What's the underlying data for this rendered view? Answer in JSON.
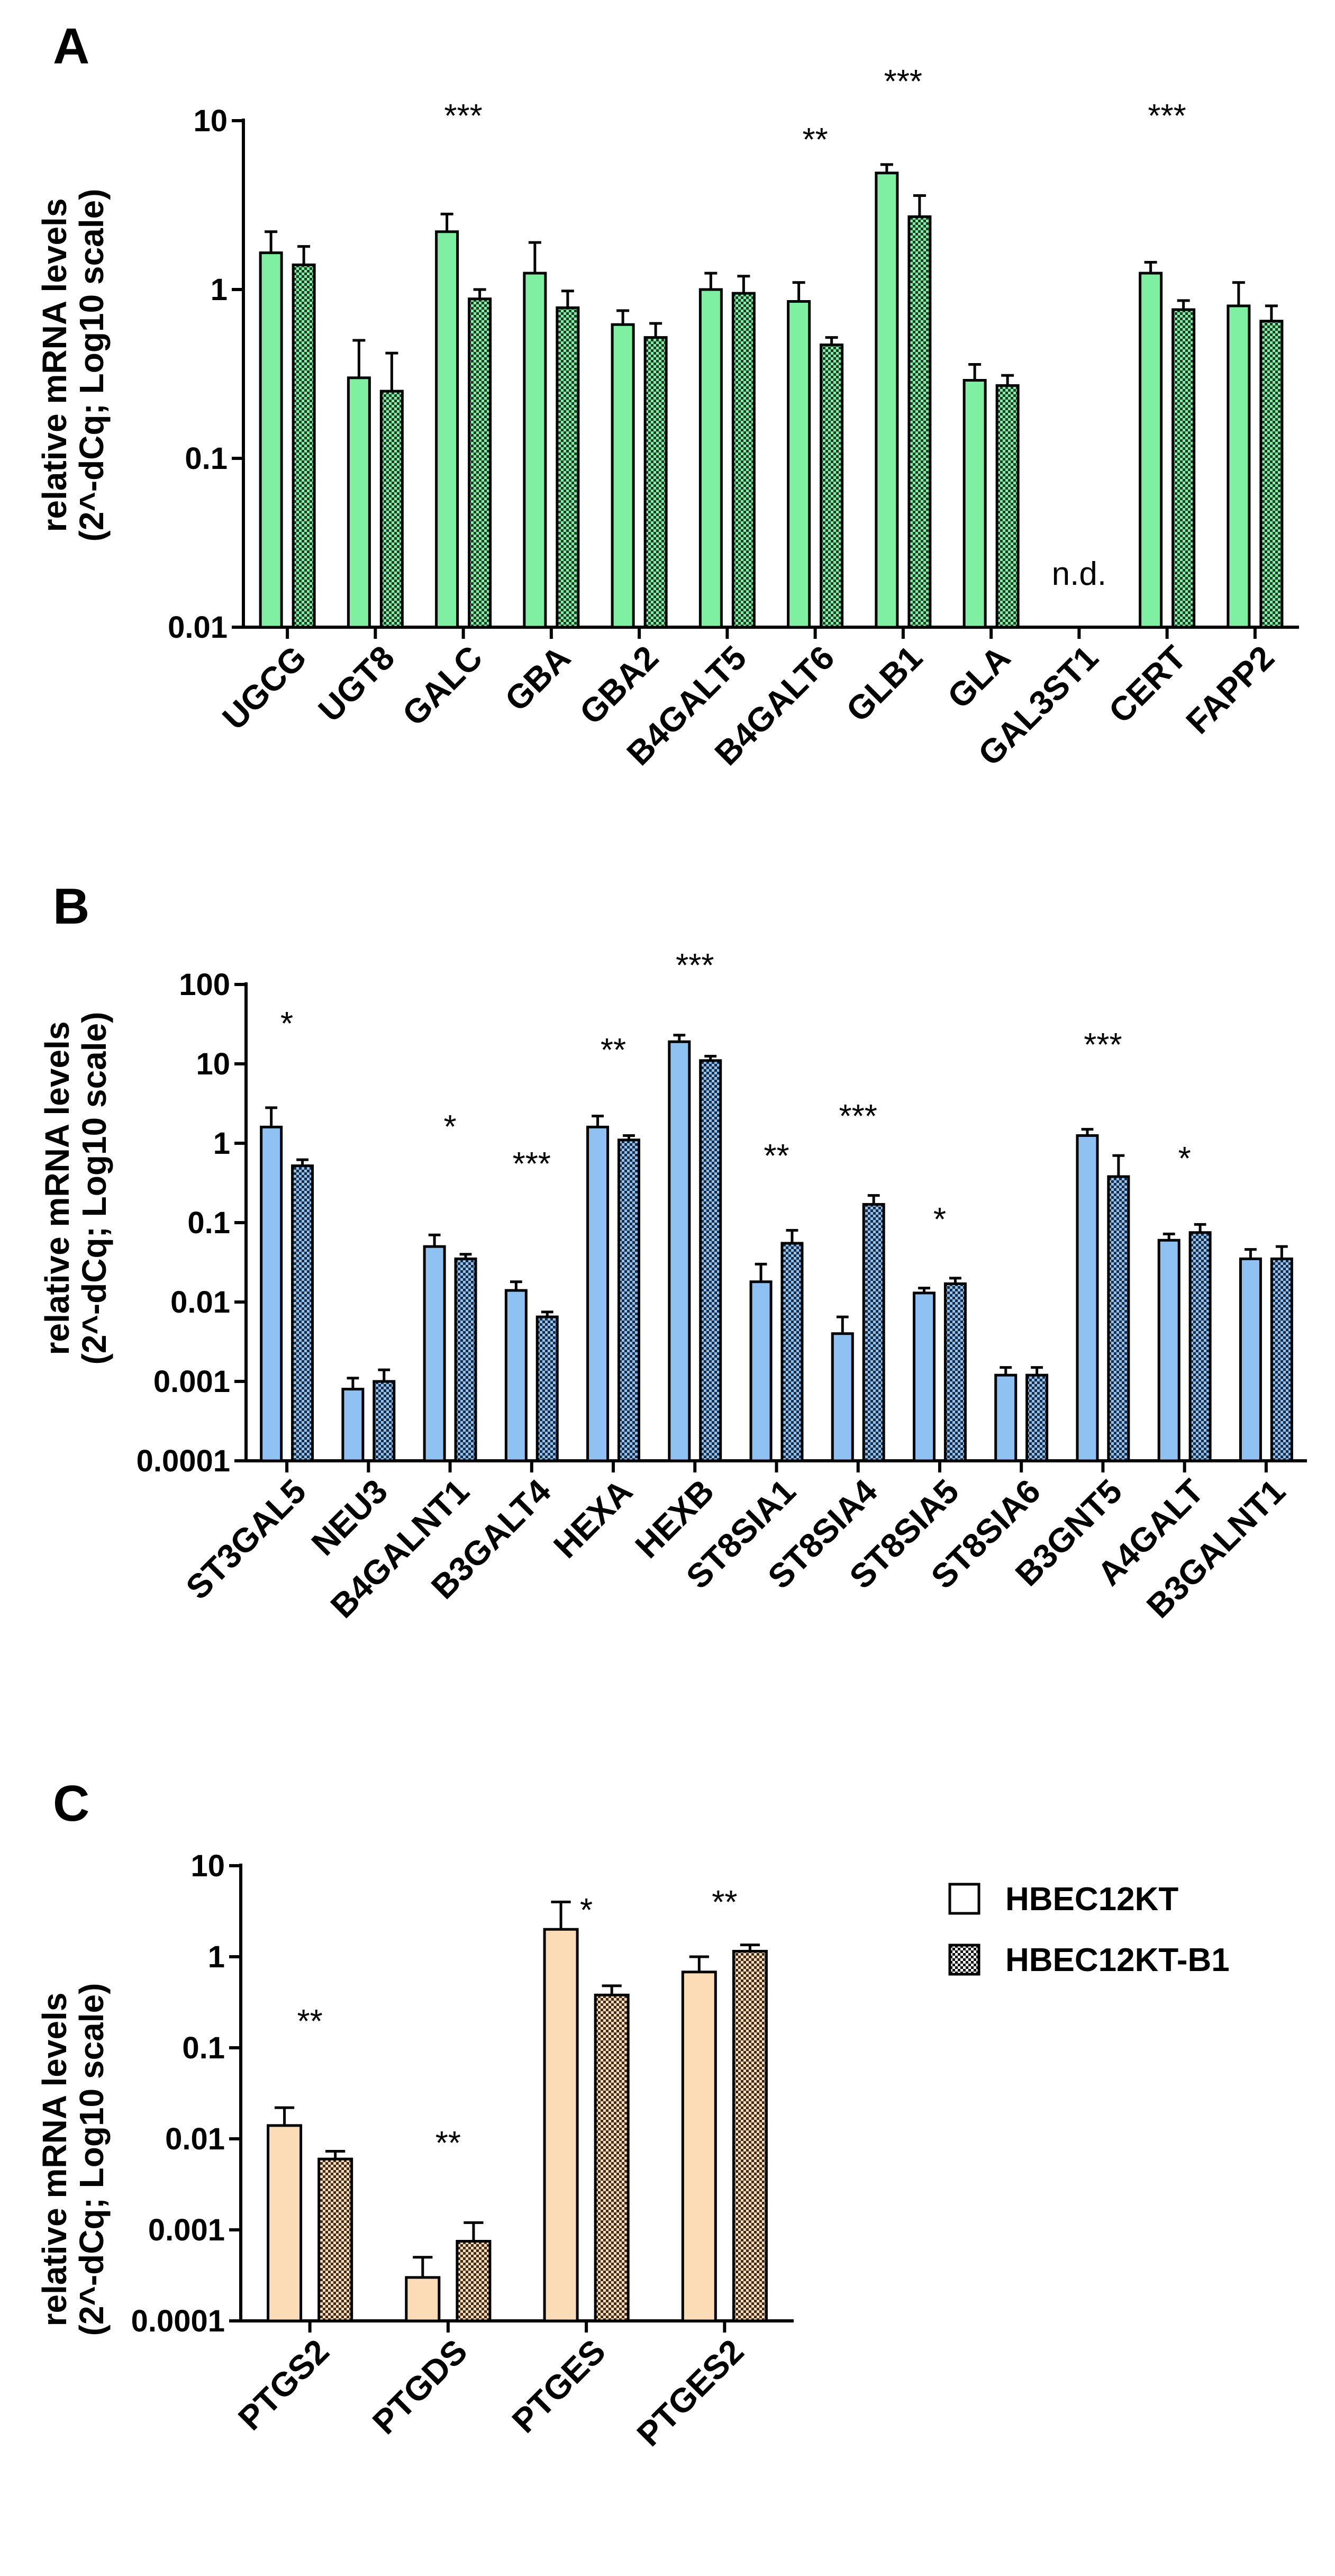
{
  "legend": {
    "items": [
      {
        "label": "HBEC12KT",
        "pattern": "open"
      },
      {
        "label": "HBEC12KT-B1",
        "pattern": "checkered"
      }
    ]
  },
  "colors": {
    "A": "#7ff0a2",
    "B": "#8fc1f2",
    "C": "#fbdcb7",
    "axis": "#000000"
  },
  "chart_data": [
    {
      "type": "bar",
      "panel": "A",
      "ylabel_line1": "relative mRNA levels",
      "ylabel_line2": "(2^-dCq; Log10 scale)",
      "yscale": "log10",
      "ylim": [
        0.01,
        10
      ],
      "yticks": [
        {
          "value": 0.01,
          "label": "0.01"
        },
        {
          "value": 0.1,
          "label": "0.1"
        },
        {
          "value": 1,
          "label": "1"
        },
        {
          "value": 10,
          "label": "10"
        }
      ],
      "categories": [
        "UGCG",
        "UGT8",
        "GALC",
        "GBA",
        "GBA2",
        "B4GALT5",
        "B4GALT6",
        "GLB1",
        "GLA",
        "GAL3ST1",
        "CERT",
        "FAPP2"
      ],
      "series": [
        {
          "name": "HBEC12KT",
          "values": [
            1.65,
            0.3,
            2.2,
            1.25,
            0.62,
            1.0,
            0.85,
            4.9,
            0.29,
            null,
            1.25,
            0.8
          ],
          "err": [
            2.2,
            0.5,
            2.8,
            1.9,
            0.75,
            1.25,
            1.1,
            5.5,
            0.36,
            null,
            1.45,
            1.1
          ]
        },
        {
          "name": "HBEC12KT-B1",
          "values": [
            1.4,
            0.25,
            0.88,
            0.78,
            0.52,
            0.95,
            0.47,
            2.7,
            0.27,
            null,
            0.76,
            0.65
          ],
          "err": [
            1.8,
            0.42,
            1.0,
            0.98,
            0.63,
            1.2,
            0.52,
            3.6,
            0.31,
            null,
            0.86,
            0.8
          ]
        }
      ],
      "annotations": [
        "",
        "",
        "***",
        "",
        "",
        "",
        "**",
        "***",
        "",
        "n.d.",
        "***",
        ""
      ]
    },
    {
      "type": "bar",
      "panel": "B",
      "ylabel_line1": "relative mRNA levels",
      "ylabel_line2": "(2^-dCq; Log10 scale)",
      "yscale": "log10",
      "ylim": [
        0.0001,
        100
      ],
      "yticks": [
        {
          "value": 0.0001,
          "label": "0.0001"
        },
        {
          "value": 0.001,
          "label": "0.001"
        },
        {
          "value": 0.01,
          "label": "0.01"
        },
        {
          "value": 0.1,
          "label": "0.1"
        },
        {
          "value": 1,
          "label": "1"
        },
        {
          "value": 10,
          "label": "10"
        },
        {
          "value": 100,
          "label": "100"
        }
      ],
      "categories": [
        "ST3GAL5",
        "NEU3",
        "B4GALNT1",
        "B3GALT4",
        "HEXA",
        "HEXB",
        "ST8SIA1",
        "ST8SIA4",
        "ST8SIA5",
        "ST8SIA6",
        "B3GNT5",
        "A4GALT",
        "B3GALNT1"
      ],
      "series": [
        {
          "name": "HBEC12KT",
          "values": [
            1.6,
            0.0008,
            0.05,
            0.014,
            1.6,
            19,
            0.018,
            0.004,
            0.013,
            0.0012,
            1.25,
            0.06,
            0.035
          ],
          "err": [
            2.8,
            0.0011,
            0.07,
            0.018,
            2.2,
            23,
            0.03,
            0.0065,
            0.015,
            0.0015,
            1.5,
            0.072,
            0.046
          ]
        },
        {
          "name": "HBEC12KT-B1",
          "values": [
            0.52,
            0.001,
            0.035,
            0.0065,
            1.1,
            11,
            0.055,
            0.17,
            0.017,
            0.0012,
            0.38,
            0.075,
            0.035
          ],
          "err": [
            0.62,
            0.0014,
            0.04,
            0.0075,
            1.25,
            12.5,
            0.08,
            0.22,
            0.02,
            0.0015,
            0.7,
            0.095,
            0.05
          ]
        }
      ],
      "annotations": [
        "*",
        "",
        "*",
        "***",
        "**",
        "***",
        "**",
        "***",
        "*",
        "",
        "***",
        "*",
        ""
      ]
    },
    {
      "type": "bar",
      "panel": "C",
      "ylabel_line1": "relative mRNA levels",
      "ylabel_line2": "(2^-dCq; Log10 scale)",
      "yscale": "log10",
      "ylim": [
        0.0001,
        10
      ],
      "yticks": [
        {
          "value": 0.0001,
          "label": "0.0001"
        },
        {
          "value": 0.001,
          "label": "0.001"
        },
        {
          "value": 0.01,
          "label": "0.01"
        },
        {
          "value": 0.1,
          "label": "0.1"
        },
        {
          "value": 1,
          "label": "1"
        },
        {
          "value": 10,
          "label": "10"
        }
      ],
      "categories": [
        "PTGS2",
        "PTGDS",
        "PTGES",
        "PTGES2"
      ],
      "series": [
        {
          "name": "HBEC12KT",
          "values": [
            0.014,
            0.0003,
            2.0,
            0.68
          ],
          "err": [
            0.022,
            0.0005,
            4.0,
            1.0
          ]
        },
        {
          "name": "HBEC12KT-B1",
          "values": [
            0.006,
            0.00075,
            0.38,
            1.15
          ],
          "err": [
            0.0073,
            0.0012,
            0.48,
            1.35
          ]
        }
      ],
      "annotations": [
        "**",
        "**",
        "*",
        "**"
      ]
    }
  ]
}
